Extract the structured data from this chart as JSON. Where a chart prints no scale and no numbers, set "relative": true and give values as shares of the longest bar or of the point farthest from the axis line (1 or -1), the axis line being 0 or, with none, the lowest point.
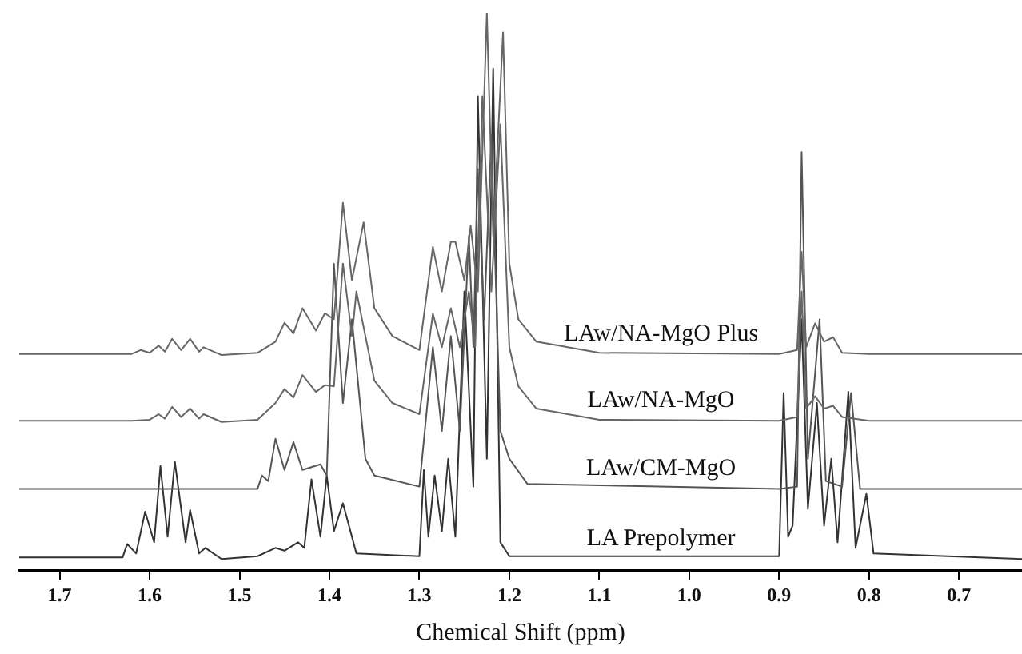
{
  "chart_data": {
    "type": "line",
    "xlabel": "Chemical Shift (ppm)",
    "relative": true,
    "xlim": [
      1.745,
      0.63
    ],
    "xticks": [
      {
        "value": 1.7,
        "label": "1.7"
      },
      {
        "value": 1.6,
        "label": "1.6"
      },
      1.5,
      {
        "value": 1.4,
        "label": "1.4"
      },
      {
        "value": 1.3,
        "label": "1.3"
      },
      {
        "value": 1.2,
        "label": "1.2"
      },
      {
        "value": 1.1,
        "label": "1.1"
      },
      {
        "value": 1.0,
        "label": "1.0"
      },
      {
        "value": 0.9,
        "label": "0.9"
      },
      {
        "value": 0.8,
        "label": "0.8"
      },
      {
        "value": 0.7,
        "label": "0.7"
      }
    ],
    "tick_labels": "x",
    "grid": false,
    "legend": false,
    "marker": "none",
    "line_style": "solid",
    "series": [
      {
        "name": "LAw/NA-MgO Plus",
        "color": "#666666",
        "x": [
          1.745,
          1.62,
          1.61,
          1.6,
          1.59,
          1.583,
          1.575,
          1.565,
          1.555,
          1.545,
          1.54,
          1.52,
          1.48,
          1.46,
          1.45,
          1.44,
          1.43,
          1.415,
          1.405,
          1.395,
          1.385,
          1.375,
          1.362,
          1.35,
          1.33,
          1.3,
          1.285,
          1.275,
          1.265,
          1.26,
          1.25,
          1.243,
          1.235,
          1.225,
          1.218,
          1.207,
          1.2,
          1.19,
          1.17,
          1.1,
          0.9,
          0.88,
          0.875,
          0.87,
          0.86,
          0.85,
          0.84,
          0.83,
          0.8,
          0.63
        ],
        "values": [
          0.388,
          0.388,
          0.395,
          0.39,
          0.403,
          0.392,
          0.415,
          0.395,
          0.415,
          0.392,
          0.4,
          0.386,
          0.39,
          0.41,
          0.444,
          0.425,
          0.47,
          0.43,
          0.461,
          0.45,
          0.659,
          0.52,
          0.624,
          0.47,
          0.42,
          0.395,
          0.58,
          0.5,
          0.589,
          0.589,
          0.52,
          0.618,
          0.5,
          1.0,
          0.6,
          0.965,
          0.55,
          0.45,
          0.41,
          0.39,
          0.388,
          0.395,
          0.571,
          0.4,
          0.443,
          0.41,
          0.418,
          0.39,
          0.388,
          0.388
        ]
      },
      {
        "name": "LAw/NA-MgO",
        "color": "#666666",
        "x": [
          1.745,
          1.62,
          1.6,
          1.59,
          1.583,
          1.575,
          1.565,
          1.555,
          1.545,
          1.54,
          1.52,
          1.48,
          1.46,
          1.45,
          1.44,
          1.43,
          1.415,
          1.405,
          1.395,
          1.385,
          1.375,
          1.37,
          1.35,
          1.33,
          1.3,
          1.285,
          1.275,
          1.265,
          1.255,
          1.245,
          1.238,
          1.23,
          1.22,
          1.21,
          1.2,
          1.19,
          1.17,
          1.1,
          0.9,
          0.88,
          0.875,
          0.87,
          0.86,
          0.85,
          0.84,
          0.83,
          0.8,
          0.63
        ],
        "values": [
          0.268,
          0.268,
          0.27,
          0.28,
          0.272,
          0.293,
          0.275,
          0.29,
          0.272,
          0.28,
          0.266,
          0.27,
          0.3,
          0.325,
          0.31,
          0.35,
          0.32,
          0.332,
          0.33,
          0.55,
          0.42,
          0.5,
          0.34,
          0.3,
          0.28,
          0.46,
          0.4,
          0.47,
          0.4,
          0.5,
          0.4,
          0.85,
          0.5,
          0.8,
          0.4,
          0.33,
          0.29,
          0.27,
          0.268,
          0.275,
          0.5,
          0.29,
          0.312,
          0.29,
          0.295,
          0.275,
          0.268,
          0.268
        ]
      },
      {
        "name": "LAw/CM-MgO",
        "color": "#555555",
        "x": [
          1.745,
          1.48,
          1.475,
          1.468,
          1.46,
          1.45,
          1.44,
          1.43,
          1.41,
          1.403,
          1.395,
          1.385,
          1.375,
          1.36,
          1.35,
          1.3,
          1.285,
          1.275,
          1.265,
          1.255,
          1.245,
          1.24,
          1.235,
          1.228,
          1.22,
          1.21,
          1.2,
          1.18,
          0.9,
          0.88,
          0.875,
          0.868,
          0.855,
          0.848,
          0.83,
          0.82,
          0.81,
          0.63
        ],
        "values": [
          0.146,
          0.146,
          0.17,
          0.16,
          0.236,
          0.18,
          0.23,
          0.18,
          0.19,
          0.17,
          0.55,
          0.3,
          0.45,
          0.2,
          0.17,
          0.15,
          0.4,
          0.25,
          0.42,
          0.25,
          0.6,
          0.4,
          0.72,
          0.45,
          0.78,
          0.25,
          0.2,
          0.155,
          0.146,
          0.15,
          0.75,
          0.2,
          0.45,
          0.16,
          0.15,
          0.318,
          0.146,
          0.146
        ]
      },
      {
        "name": "LA Prepolymer",
        "color": "#333333",
        "x": [
          1.745,
          1.63,
          1.625,
          1.615,
          1.605,
          1.595,
          1.588,
          1.58,
          1.572,
          1.56,
          1.555,
          1.545,
          1.538,
          1.52,
          1.48,
          1.46,
          1.45,
          1.435,
          1.428,
          1.42,
          1.41,
          1.403,
          1.395,
          1.385,
          1.37,
          1.3,
          1.295,
          1.29,
          1.283,
          1.275,
          1.268,
          1.26,
          1.25,
          1.24,
          1.235,
          1.225,
          1.218,
          1.21,
          1.2,
          0.9,
          0.895,
          0.89,
          0.885,
          0.875,
          0.868,
          0.858,
          0.85,
          0.842,
          0.835,
          0.823,
          0.815,
          0.803,
          0.795,
          0.63
        ],
        "values": [
          0.023,
          0.023,
          0.047,
          0.03,
          0.105,
          0.05,
          0.187,
          0.06,
          0.195,
          0.05,
          0.108,
          0.03,
          0.04,
          0.02,
          0.025,
          0.04,
          0.035,
          0.05,
          0.04,
          0.163,
          0.06,
          0.17,
          0.07,
          0.12,
          0.03,
          0.025,
          0.18,
          0.06,
          0.17,
          0.07,
          0.2,
          0.06,
          0.5,
          0.15,
          0.85,
          0.2,
          0.9,
          0.05,
          0.025,
          0.025,
          0.318,
          0.06,
          0.08,
          0.45,
          0.11,
          0.3,
          0.08,
          0.2,
          0.05,
          0.32,
          0.04,
          0.137,
          0.03,
          0.02
        ]
      }
    ]
  }
}
